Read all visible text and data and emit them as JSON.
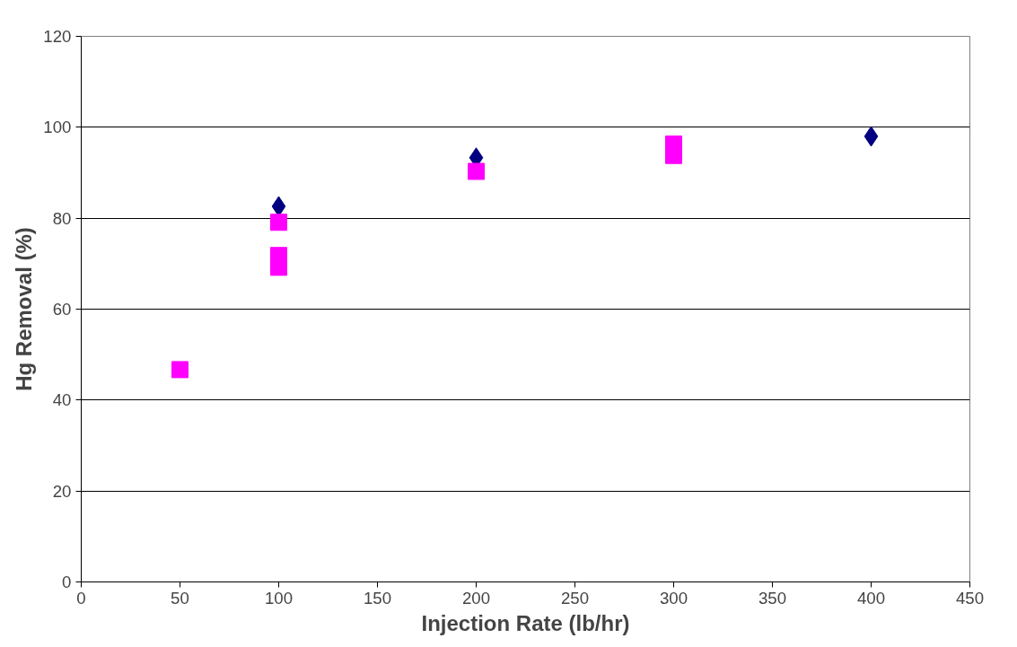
{
  "chart_data": {
    "type": "scatter",
    "xlabel": "Injection Rate (lb/hr)",
    "ylabel": "Hg Removal (%)",
    "xlim": [
      0,
      450
    ],
    "xticks": [
      0,
      50,
      100,
      150,
      200,
      250,
      300,
      350,
      400,
      450
    ],
    "ylim": [
      0,
      120
    ],
    "yticks": [
      0,
      20,
      40,
      60,
      80,
      100,
      120
    ],
    "grid": "y",
    "series": [
      {
        "color": "#000080",
        "marker": "diamond",
        "x": [
          100,
          200,
          300,
          400
        ],
        "values": [
          82.6,
          93.3,
          null,
          98
        ]
      },
      {
        "color": "#ff00ff",
        "marker": "square",
        "x": [
          50,
          100,
          100,
          100,
          200,
          300,
          300
        ],
        "values": [
          46.7,
          79.1,
          71.8,
          69.2,
          90.3,
          96.3,
          93.8
        ]
      }
    ]
  }
}
